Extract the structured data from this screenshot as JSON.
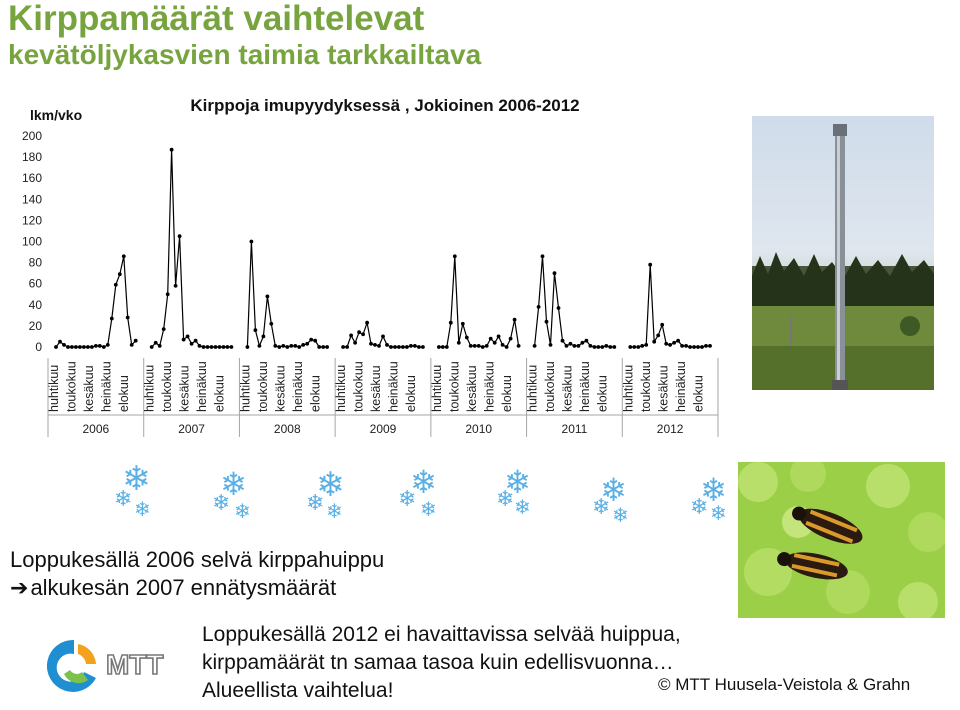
{
  "slide": {
    "title_line1": "Kirppamäärät vaihtelevat",
    "title_line2": "kevätöljykasvien taimia tarkkailtava",
    "text1_line1": "Loppukesällä 2006 selvä kirppahuippu",
    "text1_arrow": "➔",
    "text1_line2": "alkukesän 2007 ennätysmäärät",
    "text2_line1": "Loppukesällä 2012 ei havaittavissa selvää huippua,",
    "text2_line2": "kirppamäärät tn samaa tasoa kuin edellisvuonna…",
    "text2_line3": "Alueellista vaihtelua!",
    "copyright": "© MTT Huusela-Veistola & Grahn",
    "logo_text": "MTT"
  },
  "colors": {
    "title": "#77a43e",
    "line": "#000000",
    "snowflake": "#5ab0e6",
    "axis": "#a6a6a6"
  },
  "icons": [
    "snowflake-icon",
    "mtt-logo-icon"
  ],
  "chart_data": {
    "type": "line",
    "title": "Kirppoja imupyydyksessä , Jokioinen 2006-2012",
    "ylabel": "lkm/vko",
    "ylim": [
      0,
      200
    ],
    "yticks": [
      0,
      20,
      40,
      60,
      80,
      100,
      120,
      140,
      160,
      180,
      200
    ],
    "grid": false,
    "legend": "none",
    "months": [
      "huhtikuu",
      "toukokuu",
      "kesäkuu",
      "heinäkuu",
      "elokuu"
    ],
    "series": [
      {
        "year": "2006",
        "values": [
          0,
          5,
          2,
          0,
          0,
          0,
          0,
          0,
          0,
          0,
          1,
          1,
          0,
          2,
          27,
          59,
          69,
          86,
          28,
          2,
          6
        ]
      },
      {
        "year": "2007",
        "values": [
          0,
          4,
          1,
          17,
          50,
          187,
          58,
          105,
          7,
          10,
          3,
          6,
          1,
          0,
          0,
          0,
          0,
          0,
          0,
          0,
          0
        ]
      },
      {
        "year": "2008",
        "values": [
          0,
          100,
          16,
          1,
          10,
          48,
          22,
          1,
          0,
          1,
          0,
          1,
          1,
          0,
          2,
          3,
          7,
          6,
          0,
          0,
          0
        ]
      },
      {
        "year": "2009",
        "values": [
          0,
          0,
          11,
          4,
          14,
          12,
          23,
          3,
          2,
          1,
          10,
          2,
          0,
          0,
          0,
          0,
          0,
          1,
          1,
          0,
          0
        ]
      },
      {
        "year": "2010",
        "values": [
          0,
          0,
          0,
          23,
          86,
          4,
          22,
          9,
          1,
          1,
          1,
          0,
          1,
          8,
          4,
          10,
          2,
          0,
          8,
          26,
          1
        ]
      },
      {
        "year": "2011",
        "values": [
          1,
          38,
          86,
          24,
          2,
          70,
          37,
          6,
          1,
          3,
          1,
          1,
          4,
          6,
          1,
          0,
          0,
          0,
          1,
          0,
          0
        ]
      },
      {
        "year": "2012",
        "values": [
          0,
          0,
          0,
          1,
          2,
          78,
          5,
          11,
          21,
          3,
          2,
          4,
          6,
          1,
          1,
          0,
          0,
          0,
          0,
          1,
          1
        ]
      }
    ]
  }
}
